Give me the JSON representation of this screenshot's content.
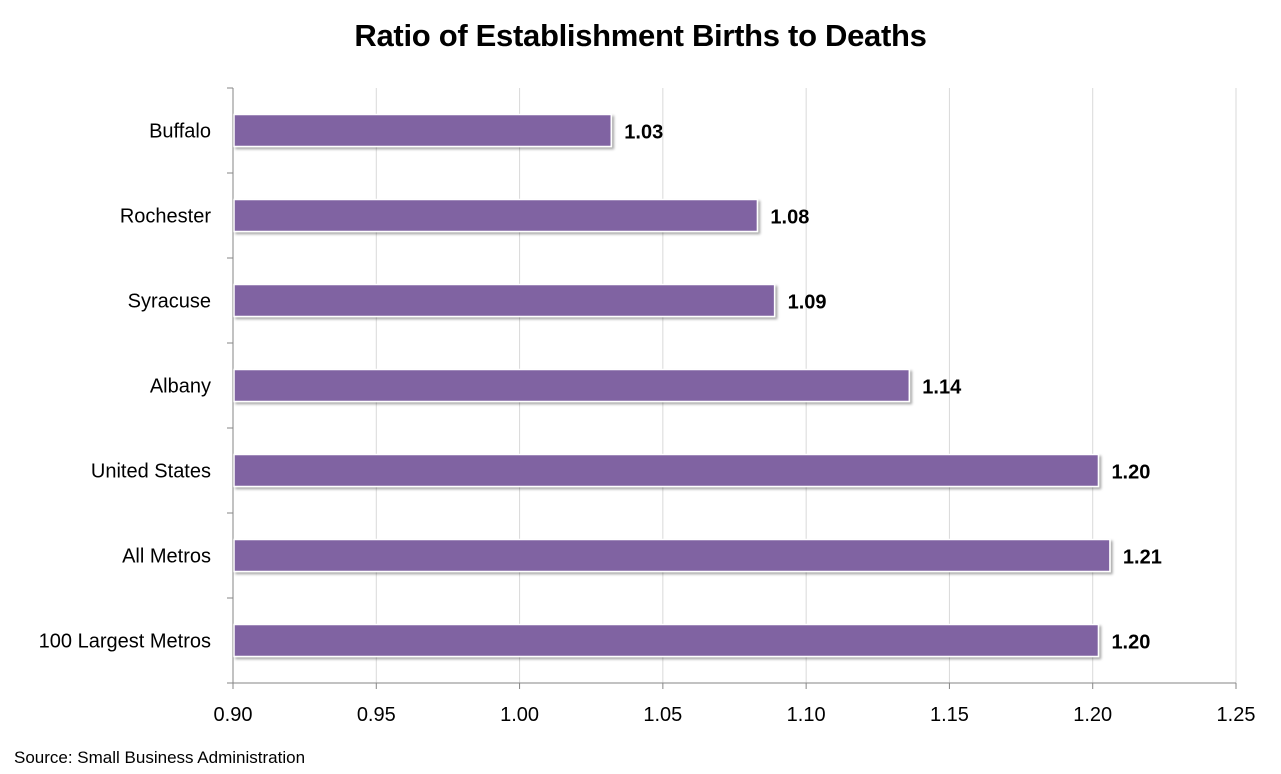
{
  "chart_data": {
    "type": "bar",
    "orientation": "horizontal",
    "title": "Ratio of Establishment Births to Deaths",
    "categories": [
      "Buffalo",
      "Rochester",
      "Syracuse",
      "Albany",
      "United States",
      "All Metros",
      "100 Largest Metros"
    ],
    "values": [
      1.032,
      1.083,
      1.089,
      1.136,
      1.202,
      1.206,
      1.202
    ],
    "data_labels": [
      "1.03",
      "1.08",
      "1.09",
      "1.14",
      "1.20",
      "1.21",
      "1.20"
    ],
    "xlim": [
      0.9,
      1.25
    ],
    "x_ticks": [
      "0.90",
      "0.95",
      "1.00",
      "1.05",
      "1.10",
      "1.15",
      "1.20",
      "1.25"
    ],
    "x_tick_values": [
      0.9,
      0.95,
      1.0,
      1.05,
      1.1,
      1.15,
      1.2,
      1.25
    ],
    "grid": "vertical",
    "legend": "none",
    "bar_color": "#8064A2"
  },
  "source": "Source: Small Business Administration"
}
